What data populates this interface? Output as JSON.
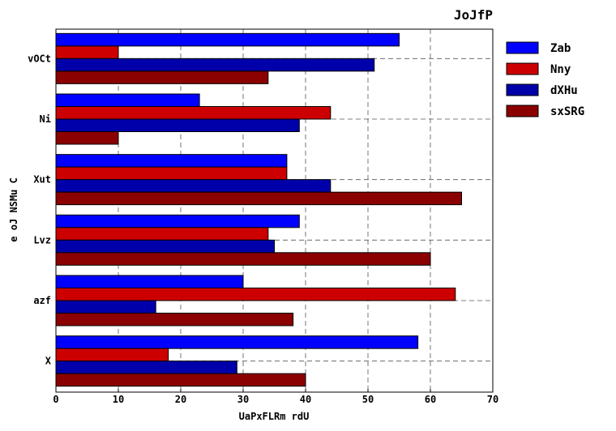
{
  "chart_data": {
    "type": "bar",
    "orientation": "horizontal",
    "title": "JoJfP",
    "xlabel": "UaPxFLRm  rdU",
    "ylabel": "e oJ NSMu  C",
    "categories": [
      "vOCt",
      "Ni",
      "Xut",
      "Lvz",
      "azf",
      "X"
    ],
    "series": [
      {
        "name": "Zab",
        "color": "#0000ff",
        "values": [
          55,
          23,
          37,
          39,
          30,
          58
        ]
      },
      {
        "name": "Nny",
        "color": "#cc0000",
        "values": [
          10,
          44,
          37,
          34,
          64,
          18
        ]
      },
      {
        "name": "dXHu",
        "color": "#0000aa",
        "values": [
          51,
          39,
          44,
          35,
          16,
          29
        ]
      },
      {
        "name": "sxSRG",
        "color": "#8b0000",
        "values": [
          34,
          10,
          65,
          60,
          38,
          40
        ]
      }
    ],
    "xlim": [
      0,
      70
    ],
    "xticks": [
      0,
      10,
      20,
      30,
      40,
      50,
      60,
      70
    ],
    "grid": true,
    "legend_position": "right"
  }
}
